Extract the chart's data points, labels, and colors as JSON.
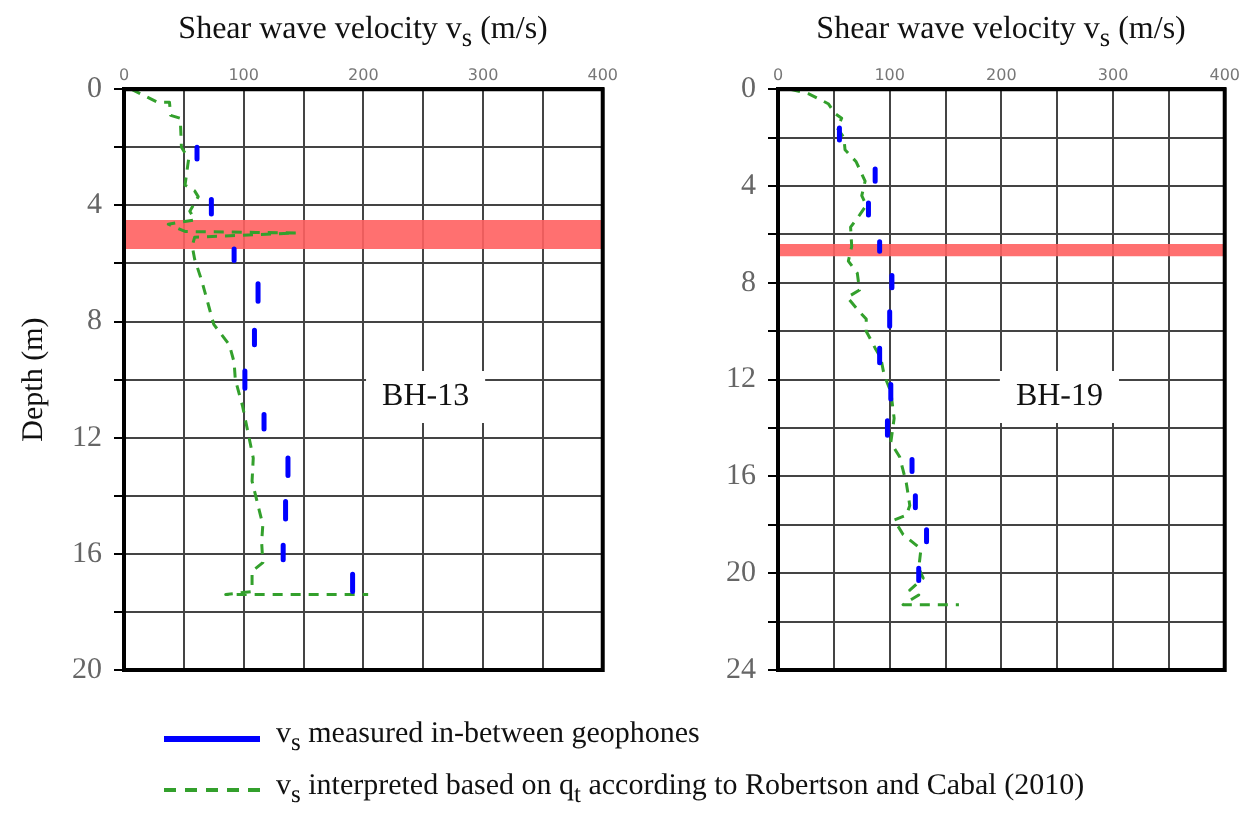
{
  "chart_data": [
    {
      "type": "line",
      "xlabel": "Shear wave velocity v$_{s}$ (m/s)",
      "ylabel": "Depth (m)",
      "xlim": [
        0,
        400
      ],
      "xticks": [
        0,
        {
          "value": 50,
          "label": null
        },
        100,
        {
          "value": 150,
          "label": null
        },
        200,
        {
          "value": 250,
          "label": null
        },
        300,
        {
          "value": 350,
          "label": null
        },
        400
      ],
      "ylim": [
        20,
        0
      ],
      "yticks": [
        0,
        {
          "value": 2,
          "label": null
        },
        4,
        {
          "value": 6,
          "label": null
        },
        8,
        {
          "value": 10,
          "label": null
        },
        12,
        {
          "value": 14,
          "label": null
        },
        16,
        {
          "value": 18,
          "label": null
        },
        20
      ],
      "grid": true,
      "legend": "bottom",
      "marker": "none",
      "bands": [
        {
          "axis": "y",
          "from": 4.5,
          "to": 5.5,
          "color": "#ff6060"
        }
      ],
      "annotations": [
        "BH-13"
      ],
      "series": [
        {
          "name": "v$_{s}$ measured in-between geophones",
          "type": "line",
          "line_style": "solid",
          "color": "#0000ff",
          "x": [
            61,
            61,
            null,
            73,
            73,
            null,
            92,
            92,
            null,
            112,
            112,
            null,
            109,
            109,
            null,
            101,
            101,
            null,
            117,
            117,
            null,
            137,
            137,
            null,
            135,
            135,
            null,
            133,
            133,
            null,
            191,
            191
          ],
          "values": [
            2.0,
            2.4,
            null,
            3.8,
            4.3,
            null,
            5.5,
            5.9,
            null,
            6.7,
            7.3,
            null,
            8.3,
            8.8,
            null,
            9.7,
            10.3,
            null,
            11.2,
            11.7,
            null,
            12.7,
            13.3,
            null,
            14.2,
            14.8,
            null,
            15.7,
            16.2,
            null,
            16.7,
            17.3
          ]
        },
        {
          "name": "v$_{s}$ interpreted based on q$_{t}$ according to Robertson and Cabal (2010)",
          "type": "line",
          "line_style": "dashed",
          "color": "#33a02c",
          "x": [
            6,
            28,
            38,
            39,
            47,
            48,
            54,
            51,
            59,
            62,
            55,
            59,
            37,
            51,
            144,
            59,
            57,
            59,
            65,
            71,
            75,
            88,
            92,
            93,
            99,
            104,
            108,
            107,
            113,
            116,
            115,
            116,
            107,
            107,
            85,
            204
          ],
          "values": [
            0,
            0.45,
            0.45,
            0.9,
            1.0,
            2.0,
            2.4,
            3.3,
            3.5,
            3.7,
            4.2,
            4.5,
            4.65,
            4.9,
            4.95,
            5.1,
            5.4,
            5.85,
            6.6,
            7.5,
            8.1,
            8.8,
            9.4,
            10,
            10.9,
            11.9,
            12.7,
            13.5,
            14.5,
            15,
            15.6,
            16.3,
            16.6,
            17.3,
            17.4,
            17.4
          ]
        }
      ]
    },
    {
      "type": "line",
      "xlabel": "Shear wave velocity v$_{s}$ (m/s)",
      "xlim": [
        0,
        400
      ],
      "xticks": [
        0,
        {
          "value": 50,
          "label": null
        },
        100,
        {
          "value": 150,
          "label": null
        },
        200,
        {
          "value": 250,
          "label": null
        },
        300,
        {
          "value": 350,
          "label": null
        },
        400
      ],
      "ylim": [
        24,
        0
      ],
      "yticks": [
        0,
        {
          "value": 2,
          "label": null
        },
        4,
        {
          "value": 6,
          "label": null
        },
        8,
        {
          "value": 10,
          "label": null
        },
        12,
        {
          "value": 14,
          "label": null
        },
        16,
        {
          "value": 18,
          "label": null
        },
        20,
        {
          "value": 22,
          "label": null
        },
        24
      ],
      "grid": true,
      "legend": "bottom",
      "marker": "none",
      "bands": [
        {
          "axis": "y",
          "from": 6.4,
          "to": 6.9,
          "color": "#ff6060"
        }
      ],
      "annotations": [
        "BH-19"
      ],
      "series": [
        {
          "name": "v$_{s}$ measured in-between geophones",
          "type": "line",
          "line_style": "solid",
          "color": "#0000ff",
          "x": [
            55,
            55,
            null,
            87,
            87,
            null,
            81,
            81,
            null,
            91,
            91,
            null,
            102,
            102,
            null,
            100,
            100,
            null,
            91,
            91,
            null,
            101,
            101,
            null,
            98,
            98,
            null,
            120,
            120,
            null,
            123,
            123,
            null,
            133,
            133,
            null,
            126,
            126
          ],
          "values": [
            1.6,
            2.1,
            null,
            3.3,
            3.8,
            null,
            4.7,
            5.2,
            null,
            6.3,
            6.7,
            null,
            7.7,
            8.2,
            null,
            9.2,
            9.8,
            null,
            10.7,
            11.3,
            null,
            12.2,
            12.8,
            null,
            13.7,
            14.3,
            null,
            15.3,
            15.8,
            null,
            16.8,
            17.3,
            null,
            18.2,
            18.7,
            null,
            19.8,
            20.3
          ]
        },
        {
          "name": "v$_{s}$ interpreted based on q$_{t}$ according to Robertson and Cabal (2010)",
          "type": "line",
          "line_style": "dashed",
          "color": "#33a02c",
          "x": [
            11,
            28,
            45,
            51,
            57,
            53,
            59,
            60,
            70,
            78,
            75,
            79,
            73,
            65,
            66,
            63,
            71,
            73,
            62,
            73,
            79,
            79,
            87,
            92,
            95,
            101,
            104,
            101,
            109,
            115,
            118,
            115,
            104,
            112,
            128,
            126,
            130,
            118,
            126,
            112,
            162
          ],
          "values": [
            0,
            0.2,
            0.6,
            1.0,
            1.2,
            1.6,
            2.0,
            2.5,
            3.0,
            3.8,
            4.4,
            4.8,
            5.2,
            5.7,
            6.5,
            7.1,
            7.6,
            8.3,
            8.6,
            9.2,
            9.5,
            10,
            10.7,
            11.1,
            11.8,
            12.5,
            13.6,
            14.6,
            15.2,
            16.3,
            17.2,
            17.6,
            17.8,
            18.4,
            19.0,
            19.8,
            20.2,
            20.7,
            20.9,
            21.3,
            21.3
          ]
        }
      ]
    }
  ]
}
